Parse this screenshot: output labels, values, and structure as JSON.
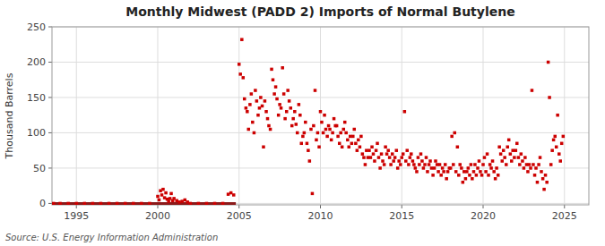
{
  "chart_data": {
    "type": "scatter",
    "title": "Monthly Midwest (PADD 2) Imports of Normal Butylene",
    "y_label": "Thousand Barrels",
    "source": "Source: U.S. Energy Information Administration",
    "color": "#cc0000",
    "marker": "square",
    "grid": true,
    "xlim": [
      1993.5,
      2026.5
    ],
    "ylim": [
      -2,
      250
    ],
    "xticks": [
      1995,
      2000,
      2005,
      2010,
      2015,
      2020,
      2025
    ],
    "yticks": [
      0,
      50,
      100,
      150,
      200,
      250
    ],
    "reference_line": {
      "x": [
        1993.5,
        2004.8
      ],
      "y": 0,
      "color": "#8b1a1a"
    },
    "x": [
      1993.6,
      1994.0,
      1994.5,
      1995.0,
      1995.5,
      1996.0,
      1996.5,
      1997.0,
      1997.5,
      1998.0,
      1998.5,
      1999.0,
      1999.5,
      2000.0,
      2000.08,
      2000.17,
      2000.25,
      2000.33,
      2000.42,
      2000.5,
      2000.58,
      2000.67,
      2000.75,
      2000.83,
      2000.92,
      2001.0,
      2001.17,
      2001.33,
      2001.5,
      2001.67,
      2001.83,
      2002.0,
      2002.5,
      2003.0,
      2003.5,
      2004.0,
      2004.33,
      2004.5,
      2004.67,
      2005.0,
      2005.08,
      2005.17,
      2005.25,
      2005.33,
      2005.42,
      2005.5,
      2005.58,
      2005.67,
      2005.75,
      2005.83,
      2005.92,
      2006.0,
      2006.08,
      2006.17,
      2006.25,
      2006.33,
      2006.42,
      2006.5,
      2006.58,
      2006.67,
      2006.75,
      2006.83,
      2006.92,
      2007.0,
      2007.08,
      2007.17,
      2007.25,
      2007.33,
      2007.42,
      2007.5,
      2007.58,
      2007.67,
      2007.75,
      2007.83,
      2007.92,
      2008.0,
      2008.08,
      2008.17,
      2008.25,
      2008.33,
      2008.42,
      2008.5,
      2008.58,
      2008.67,
      2008.75,
      2008.83,
      2008.92,
      2009.0,
      2009.08,
      2009.17,
      2009.25,
      2009.33,
      2009.42,
      2009.5,
      2009.58,
      2009.67,
      2009.75,
      2009.83,
      2009.92,
      2010.0,
      2010.08,
      2010.17,
      2010.25,
      2010.33,
      2010.42,
      2010.5,
      2010.58,
      2010.67,
      2010.75,
      2010.83,
      2010.92,
      2011.0,
      2011.08,
      2011.17,
      2011.25,
      2011.33,
      2011.42,
      2011.5,
      2011.58,
      2011.67,
      2011.75,
      2011.83,
      2011.92,
      2012.0,
      2012.08,
      2012.17,
      2012.25,
      2012.33,
      2012.42,
      2012.5,
      2012.58,
      2012.67,
      2012.75,
      2012.83,
      2012.92,
      2013.0,
      2013.08,
      2013.17,
      2013.25,
      2013.33,
      2013.42,
      2013.5,
      2013.58,
      2013.67,
      2013.75,
      2013.83,
      2013.92,
      2014.0,
      2014.08,
      2014.17,
      2014.25,
      2014.33,
      2014.42,
      2014.5,
      2014.58,
      2014.67,
      2014.75,
      2014.83,
      2014.92,
      2015.0,
      2015.08,
      2015.17,
      2015.25,
      2015.33,
      2015.42,
      2015.5,
      2015.58,
      2015.67,
      2015.75,
      2015.83,
      2015.92,
      2016.0,
      2016.08,
      2016.17,
      2016.25,
      2016.33,
      2016.42,
      2016.5,
      2016.58,
      2016.67,
      2016.75,
      2016.83,
      2016.92,
      2017.0,
      2017.08,
      2017.17,
      2017.25,
      2017.33,
      2017.42,
      2017.5,
      2017.58,
      2017.67,
      2017.75,
      2017.83,
      2017.92,
      2018.0,
      2018.08,
      2018.17,
      2018.25,
      2018.33,
      2018.42,
      2018.5,
      2018.58,
      2018.67,
      2018.75,
      2018.83,
      2018.92,
      2019.0,
      2019.08,
      2019.17,
      2019.25,
      2019.33,
      2019.42,
      2019.5,
      2019.58,
      2019.67,
      2019.75,
      2019.83,
      2019.92,
      2020.0,
      2020.08,
      2020.17,
      2020.25,
      2020.33,
      2020.42,
      2020.5,
      2020.58,
      2020.67,
      2020.75,
      2020.83,
      2020.92,
      2021.0,
      2021.08,
      2021.17,
      2021.25,
      2021.33,
      2021.42,
      2021.5,
      2021.58,
      2021.67,
      2021.75,
      2021.83,
      2021.92,
      2022.0,
      2022.08,
      2022.17,
      2022.25,
      2022.33,
      2022.42,
      2022.5,
      2022.58,
      2022.67,
      2022.75,
      2022.83,
      2022.92,
      2023.0,
      2023.08,
      2023.17,
      2023.25,
      2023.33,
      2023.42,
      2023.5,
      2023.58,
      2023.67,
      2023.75,
      2023.83,
      2023.92,
      2024.0,
      2024.08,
      2024.17,
      2024.25,
      2024.33,
      2024.42,
      2024.5,
      2024.58,
      2024.67,
      2024.75,
      2024.83,
      2024.92
    ],
    "values": [
      0,
      0,
      0,
      0,
      0,
      0,
      0,
      0,
      0,
      0,
      0,
      0,
      0,
      10,
      5,
      18,
      12,
      20,
      8,
      15,
      6,
      3,
      7,
      14,
      4,
      7,
      4,
      2,
      3,
      5,
      2,
      0,
      0,
      0,
      0,
      0,
      13,
      15,
      12,
      197,
      183,
      232,
      178,
      148,
      135,
      130,
      105,
      140,
      155,
      115,
      100,
      160,
      145,
      125,
      135,
      150,
      138,
      80,
      145,
      130,
      120,
      110,
      105,
      190,
      175,
      155,
      165,
      148,
      125,
      140,
      135,
      192,
      155,
      120,
      130,
      160,
      145,
      135,
      110,
      120,
      130,
      112,
      100,
      140,
      125,
      85,
      95,
      100,
      115,
      85,
      75,
      60,
      105,
      14,
      110,
      160,
      90,
      100,
      80,
      130,
      115,
      100,
      125,
      105,
      95,
      110,
      105,
      90,
      100,
      120,
      110,
      110,
      95,
      85,
      100,
      80,
      105,
      115,
      100,
      90,
      80,
      95,
      85,
      95,
      105,
      85,
      75,
      90,
      80,
      95,
      70,
      65,
      55,
      75,
      65,
      75,
      65,
      80,
      70,
      60,
      75,
      85,
      65,
      50,
      70,
      60,
      55,
      80,
      70,
      75,
      65,
      55,
      70,
      60,
      65,
      75,
      50,
      60,
      55,
      65,
      70,
      130,
      60,
      75,
      55,
      65,
      70,
      60,
      55,
      50,
      45,
      65,
      55,
      70,
      60,
      50,
      55,
      65,
      45,
      55,
      60,
      50,
      40,
      50,
      60,
      55,
      45,
      55,
      40,
      50,
      45,
      55,
      35,
      45,
      50,
      50,
      95,
      55,
      100,
      45,
      80,
      40,
      55,
      50,
      30,
      45,
      35,
      45,
      50,
      40,
      55,
      35,
      45,
      55,
      40,
      50,
      60,
      45,
      40,
      55,
      65,
      45,
      70,
      40,
      55,
      50,
      60,
      45,
      35,
      50,
      40,
      80,
      70,
      60,
      75,
      65,
      55,
      80,
      90,
      70,
      60,
      75,
      65,
      75,
      85,
      65,
      55,
      70,
      60,
      50,
      65,
      55,
      45,
      55,
      50,
      160,
      55,
      40,
      50,
      30,
      55,
      65,
      45,
      35,
      20,
      40,
      30,
      200,
      150,
      55,
      75,
      90,
      95,
      80,
      125,
      70,
      60,
      85,
      95
    ]
  }
}
